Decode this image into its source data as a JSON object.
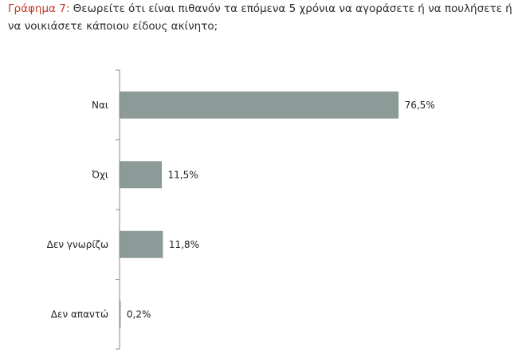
{
  "caption": {
    "label": "Γράφημα 7:",
    "text": "Θεωρείτε ότι είναι πιθανόν τα επόμενα 5 χρόνια να αγοράσετε ή να πουλήσετε ή να νοικιάσετε κάποιου είδους ακίνητο;"
  },
  "chart_data": {
    "type": "bar",
    "orientation": "horizontal",
    "categories": [
      "Ναι",
      "Όχι",
      "Δεν γνωρίζω",
      "Δεν απαντώ"
    ],
    "values": [
      76.5,
      11.5,
      11.8,
      0.2
    ],
    "value_labels": [
      "76,5%",
      "11,5%",
      "11,8%",
      "0,2%"
    ],
    "unit": "%",
    "xlim": [
      0,
      100
    ],
    "grid": false,
    "legend": "none",
    "colors": {
      "bar": "#8c9b98",
      "axis": "#888888"
    }
  }
}
